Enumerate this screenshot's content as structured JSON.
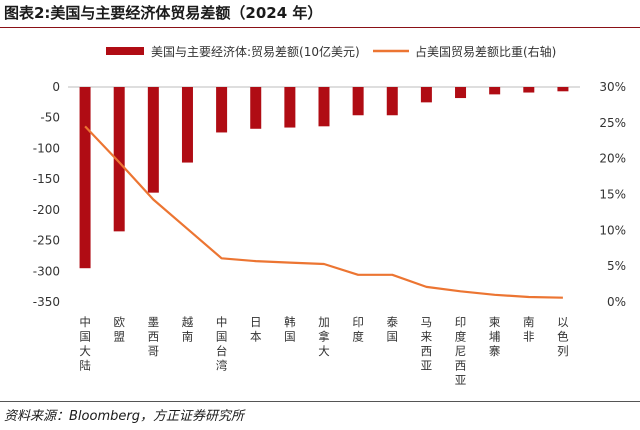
{
  "figure": {
    "title": "图表2:美国与主要经济体贸易差额（2024 年）",
    "source": "资料来源：Bloomberg，方正证券研究所"
  },
  "colors": {
    "bar": "#b00c14",
    "line": "#ec7532",
    "title_rule": "#8a1116"
  },
  "chart_data": {
    "type": "bar",
    "categories": [
      "中国大陆",
      "欧盟",
      "墨西哥",
      "越南",
      "中国台湾",
      "日本",
      "韩国",
      "加拿大",
      "印度",
      "泰国",
      "马来西亚",
      "印度尼西亚",
      "柬埔寨",
      "南非",
      "以色列"
    ],
    "series": [
      {
        "name": "美国与主要经济体:贸易差额(10亿美元)",
        "type": "bar",
        "axis": "left",
        "values": [
          -295,
          -235,
          -172,
          -123,
          -74,
          -68,
          -66,
          -64,
          -46,
          -46,
          -25,
          -18,
          -12,
          -9,
          -7
        ]
      },
      {
        "name": "占美国贸易差额比重(右轴)",
        "type": "line",
        "axis": "right",
        "values": [
          24.5,
          19.5,
          14.3,
          10.2,
          6.1,
          5.7,
          5.5,
          5.3,
          3.8,
          3.8,
          2.1,
          1.5,
          1.0,
          0.7,
          0.6
        ]
      }
    ],
    "y_left": {
      "min": -350,
      "max": 0,
      "ticks": [
        0,
        -50,
        -100,
        -150,
        -200,
        -250,
        -300,
        -350
      ]
    },
    "y_right": {
      "min": 0,
      "max": 30,
      "ticks": [
        0,
        5,
        10,
        15,
        20,
        25,
        30
      ],
      "tick_suffix": "%"
    },
    "legend_position": "top",
    "grid": false
  }
}
